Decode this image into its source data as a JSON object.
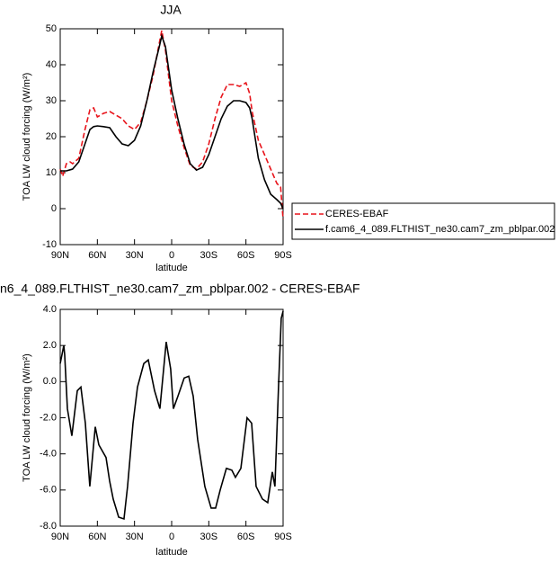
{
  "chart_data": [
    {
      "type": "line",
      "title": "JJA",
      "x_label": "latitude",
      "y_label": "TOA LW cloud forcing (W/m²)",
      "xlim": [
        90,
        -90
      ],
      "xticks": [
        {
          "value": 90,
          "label": "90N"
        },
        {
          "value": 60,
          "label": "60N"
        },
        {
          "value": 30,
          "label": "30N"
        },
        0,
        {
          "value": -30,
          "label": "30S"
        },
        {
          "value": -60,
          "label": "60S"
        },
        {
          "value": -90,
          "label": "90S"
        }
      ],
      "ylim": [
        -10,
        50
      ],
      "yticks": [
        -10,
        0,
        10,
        20,
        30,
        40,
        50
      ],
      "legend": "right",
      "x": [
        90,
        88,
        85,
        82,
        80,
        75,
        70,
        66,
        63,
        60,
        55,
        50,
        45,
        40,
        35,
        30,
        25,
        20,
        15,
        10,
        8,
        5,
        0,
        -5,
        -10,
        -15,
        -20,
        -25,
        -30,
        -35,
        -40,
        -45,
        -50,
        -55,
        -60,
        -63,
        -65,
        -70,
        -75,
        -80,
        -85,
        -88,
        -90
      ],
      "series": [
        {
          "name": "CERES-EBAF",
          "color": "#e8141b",
          "dash": true,
          "values": [
            11,
            9,
            12.5,
            13,
            12.5,
            14,
            22,
            27.5,
            28,
            25.5,
            26.5,
            27,
            26,
            25,
            23,
            22,
            24,
            30,
            37,
            46,
            49.5,
            44,
            30,
            23,
            17,
            12,
            11,
            13,
            18,
            25,
            31,
            34.5,
            34.5,
            34,
            35,
            32,
            27,
            19,
            15,
            11,
            7,
            6,
            -3
          ]
        },
        {
          "name": "f.cam6_4_089.FLTHIST_ne30.cam7_zm_pblpar.002",
          "color": "#000000",
          "dash": false,
          "values": [
            10.5,
            10.5,
            10.5,
            10.8,
            11,
            13,
            18,
            22,
            22.8,
            23,
            22.8,
            22.5,
            20,
            18,
            17.5,
            19,
            23,
            30,
            38,
            45,
            48,
            45,
            33,
            25,
            18,
            12.5,
            10.7,
            11.5,
            15,
            20,
            25,
            28.5,
            30,
            30,
            29.5,
            28,
            25,
            14,
            8,
            4,
            2.5,
            1.5,
            0
          ]
        }
      ]
    },
    {
      "type": "line",
      "title": "n6_4_089.FLTHIST_ne30.cam7_zm_pblpar.002 - CERES-EBAF",
      "x_label": "latitude",
      "y_label": "TOA LW cloud forcing (W/m²)",
      "xlim": [
        90,
        -90
      ],
      "xticks": [
        {
          "value": 90,
          "label": "90N"
        },
        {
          "value": 60,
          "label": "60N"
        },
        {
          "value": 30,
          "label": "30N"
        },
        0,
        {
          "value": -30,
          "label": "30S"
        },
        {
          "value": -60,
          "label": "60S"
        },
        {
          "value": -90,
          "label": "90S"
        }
      ],
      "ylim": [
        -8,
        4
      ],
      "yticks": [
        {
          "value": -8,
          "label": "-8.0"
        },
        {
          "value": -6,
          "label": "-6.0"
        },
        {
          "value": -4,
          "label": "-4.0"
        },
        {
          "value": -2,
          "label": "-2.0"
        },
        {
          "value": 0,
          "label": "0.0"
        },
        {
          "value": 2,
          "label": "2.0"
        },
        {
          "value": 4,
          "label": "4.0"
        }
      ],
      "x": [
        90,
        87.1,
        86.4,
        84.2,
        80.6,
        76.2,
        73.3,
        69.7,
        66.1,
        61.7,
        58.8,
        53,
        50.1,
        47.2,
        42.8,
        38.5,
        35.6,
        31.2,
        27.6,
        22.5,
        18.9,
        13.8,
        9.5,
        4.4,
        0.8,
        -1.4,
        -5.1,
        -10.1,
        -13.8,
        -17.4,
        -21,
        -26.8,
        -31.9,
        -35.5,
        -39.2,
        -44.2,
        -48.6,
        -51.5,
        -55.9,
        -60.9,
        -64.6,
        -68.2,
        -73.3,
        -77.6,
        -81.3,
        -83.4,
        -86.3,
        -88.5,
        -90
      ],
      "series": [
        {
          "color": "#000000",
          "dash": false,
          "values": [
            1.0,
            2.0,
            1.5,
            -1.5,
            -3.0,
            -0.5,
            -0.3,
            -2.3,
            -5.8,
            -2.5,
            -3.5,
            -4.2,
            -5.5,
            -6.5,
            -7.5,
            -7.6,
            -5.8,
            -2.3,
            -0.3,
            1.0,
            1.2,
            -0.5,
            -1.5,
            2.2,
            0.7,
            -1.5,
            -0.8,
            0.2,
            0.3,
            -0.8,
            -3.2,
            -5.8,
            -7.0,
            -7.0,
            -6.0,
            -4.8,
            -4.9,
            -5.3,
            -4.8,
            -2.0,
            -2.3,
            -5.8,
            -6.5,
            -6.7,
            -5.0,
            -5.8,
            -0.3,
            3.5,
            3.9
          ]
        }
      ]
    }
  ]
}
